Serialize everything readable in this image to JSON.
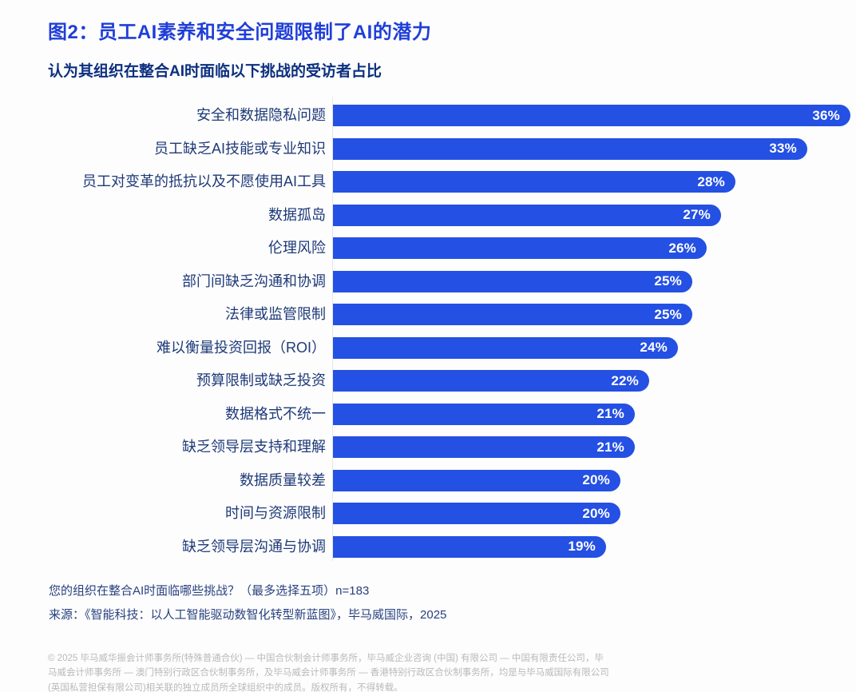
{
  "header": {
    "title": "图2：员工AI素养和安全问题限制了AI的潜力",
    "subtitle": "认为其组织在整合AI时面临以下挑战的受访者占比"
  },
  "chart_data": {
    "type": "bar",
    "orientation": "horizontal",
    "title": "图2：员工AI素养和安全问题限制了AI的潜力",
    "subtitle": "认为其组织在整合AI时面临以下挑战的受访者占比",
    "categories": [
      "安全和数据隐私问题",
      "员工缺乏AI技能或专业知识",
      "员工对变革的抵抗以及不愿使用AI工具",
      "数据孤岛",
      "伦理风险",
      "部门间缺乏沟通和协调",
      "法律或监管限制",
      "难以衡量投资回报（ROI）",
      "预算限制或缺乏投资",
      "数据格式不统一",
      "缺乏领导层支持和理解",
      "数据质量较差",
      "时间与资源限制",
      "缺乏领导层沟通与协调"
    ],
    "values": [
      36,
      33,
      28,
      27,
      26,
      25,
      25,
      24,
      22,
      21,
      21,
      20,
      20,
      19
    ],
    "value_suffix": "%",
    "xlim": [
      0,
      36
    ],
    "grid": false,
    "legend": false,
    "bar_color": "#2450e3",
    "value_label_color": "#ffffff",
    "sample_size": "n=183"
  },
  "footer": {
    "question": "您的组织在整合AI时面临哪些挑战？（最多选择五项）n=183",
    "source": "来源：《智能科技：以人工智能驱动数智化转型新蓝图》，毕马威国际，2025",
    "copyright": "© 2025 毕马威华振会计师事务所(特殊普通合伙) — 中国合伙制会计师事务所，毕马威企业咨询 (中国) 有限公司 — 中国有限责任公司，毕马威会计师事务所 — 澳门特别行政区合伙制事务所，及毕马威会计师事务所 — 香港特别行政区合伙制事务所，均是与毕马威国际有限公司(英国私营担保有限公司)相关联的独立成员所全球组织中的成员。版权所有，不得转载。"
  },
  "colors": {
    "title_blue": "#1f3ed8",
    "subtitle_navy": "#0b2f7f",
    "label_navy": "#1e3a78",
    "bar_blue": "#2450e3",
    "footer_navy": "#27417f",
    "copyright_gray": "#b9b9b9"
  }
}
